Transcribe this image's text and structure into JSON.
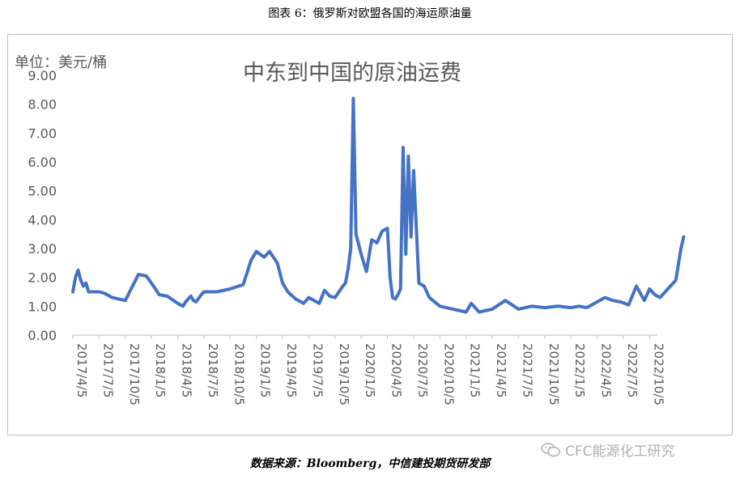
{
  "figure_caption": "图表 6：俄罗斯对欧盟各国的海运原油量",
  "source_note": "数据来源：Bloomberg，中信建投期货研发部",
  "watermark": "CFC能源化工研究",
  "chart_data": {
    "type": "line",
    "title": "中东到中国的原油运费",
    "ylabel": "单位：美元/桶",
    "xlabel": "",
    "ylim": [
      0,
      9
    ],
    "yticks": [
      "0.00",
      "1.00",
      "2.00",
      "3.00",
      "4.00",
      "5.00",
      "6.00",
      "7.00",
      "8.00",
      "9.00"
    ],
    "grid": false,
    "line_color": "#4472c4",
    "categories": [
      "2017/4/5",
      "2017/7/5",
      "2017/10/5",
      "2018/1/5",
      "2018/4/5",
      "2018/7/5",
      "2018/10/5",
      "2019/1/5",
      "2019/4/5",
      "2019/7/5",
      "2019/10/5",
      "2020/1/5",
      "2020/4/5",
      "2020/7/5",
      "2020/10/5",
      "2021/1/5",
      "2021/4/5",
      "2021/7/5",
      "2021/10/5",
      "2022/1/5",
      "2022/4/5",
      "2022/7/5",
      "2022/10/5"
    ],
    "series": [
      {
        "x": [
          0,
          0.1,
          0.2,
          0.3,
          0.4,
          0.5,
          0.6,
          0.8,
          1.0,
          1.2,
          1.5,
          2.0,
          2.5,
          2.8,
          3.0,
          3.3,
          3.6,
          4.0,
          4.2,
          4.3,
          4.4,
          4.5,
          4.6,
          4.7,
          4.9,
          5.0,
          5.5,
          6.0,
          6.5,
          6.8,
          7.0,
          7.3,
          7.5,
          7.8,
          8.0,
          8.2,
          8.5,
          8.8,
          9.0,
          9.2,
          9.4,
          9.6,
          9.8,
          10.0,
          10.3,
          10.4,
          10.5,
          10.6,
          10.7,
          10.8,
          11.0,
          11.2,
          11.4,
          11.6,
          11.8,
          12.0,
          12.1,
          12.2,
          12.3,
          12.4,
          12.5,
          12.6,
          12.7,
          12.8,
          12.9,
          13.0,
          13.2,
          13.4,
          13.6,
          14.0,
          14.5,
          15.0,
          15.2,
          15.5,
          16.0,
          16.5,
          17.0,
          17.5,
          18.0,
          18.5,
          19.0,
          19.3,
          19.6,
          20.0,
          20.3,
          20.6,
          20.9,
          21.2,
          21.5,
          21.8,
          22.0,
          22.2,
          22.4,
          22.6,
          22.8,
          23.0,
          23.2,
          23.3
        ],
        "y": [
          1.5,
          2.0,
          2.25,
          1.9,
          1.7,
          1.8,
          1.5,
          1.5,
          1.5,
          1.45,
          1.3,
          1.2,
          2.1,
          2.05,
          1.8,
          1.4,
          1.35,
          1.1,
          1.0,
          1.15,
          1.25,
          1.35,
          1.2,
          1.15,
          1.4,
          1.5,
          1.5,
          1.6,
          1.75,
          2.6,
          2.9,
          2.7,
          2.9,
          2.5,
          1.8,
          1.5,
          1.25,
          1.1,
          1.3,
          1.2,
          1.1,
          1.55,
          1.35,
          1.3,
          1.7,
          1.8,
          2.3,
          3.0,
          8.2,
          3.5,
          2.8,
          2.2,
          3.3,
          3.2,
          3.6,
          3.7,
          2.0,
          1.3,
          1.25,
          1.4,
          1.6,
          6.5,
          2.8,
          6.2,
          3.4,
          5.7,
          1.8,
          1.7,
          1.3,
          1.0,
          0.9,
          0.8,
          1.1,
          0.8,
          0.9,
          1.2,
          0.9,
          1.0,
          0.95,
          1.0,
          0.95,
          1.0,
          0.95,
          1.15,
          1.3,
          1.2,
          1.15,
          1.05,
          1.7,
          1.2,
          1.6,
          1.4,
          1.3,
          1.5,
          1.7,
          1.9,
          3.0,
          3.4
        ]
      }
    ]
  }
}
